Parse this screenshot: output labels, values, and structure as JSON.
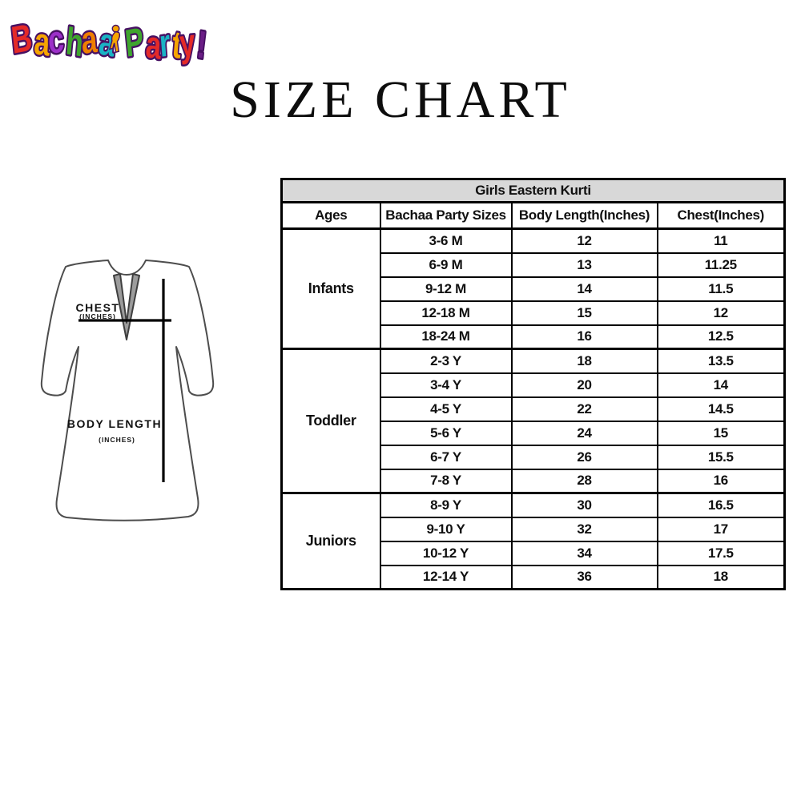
{
  "page": {
    "title": "SIZE CHART",
    "background": "#ffffff"
  },
  "logo": {
    "alt": "Bachaa Party!",
    "outline_color": "#471063",
    "kid_icon_color": "#f6a500",
    "words": [
      {
        "letters": [
          {
            "ch": "B",
            "color": "#e42a28"
          },
          {
            "ch": "a",
            "color": "#f6a500"
          },
          {
            "ch": "c",
            "color": "#9c2fc9"
          },
          {
            "ch": "h",
            "color": "#3fa52e"
          },
          {
            "ch": "a",
            "color": "#ef7f00"
          },
          {
            "ch": "a",
            "color": "#1ab3c5"
          }
        ]
      },
      {
        "letters": [
          {
            "ch": "P",
            "color": "#3fa52e"
          },
          {
            "ch": "a",
            "color": "#e42a28"
          },
          {
            "ch": "r",
            "color": "#1ab3c5"
          },
          {
            "ch": "t",
            "color": "#f6a500"
          },
          {
            "ch": "y",
            "color": "#e42a28"
          },
          {
            "ch": "!",
            "color": "#6b1d86"
          }
        ]
      }
    ]
  },
  "diagram": {
    "chest_label": "CHEST",
    "chest_unit": "(INCHES)",
    "body_length_label": "BODY LENGTH",
    "body_length_unit": "(INCHES)",
    "placket_color": "#9c9c9c",
    "outline_color": "#4d4d4d"
  },
  "table": {
    "title": "Girls Eastern Kurti",
    "title_bg": "#d8d8d8",
    "columns": [
      "Ages",
      "Bachaa Party Sizes",
      "Body Length(Inches)",
      "Chest(Inches)"
    ],
    "groups": [
      {
        "age_group": "Infants",
        "rows": [
          {
            "size": "3-6 M",
            "body_length": "12",
            "chest": "11"
          },
          {
            "size": "6-9 M",
            "body_length": "13",
            "chest": "11.25"
          },
          {
            "size": "9-12 M",
            "body_length": "14",
            "chest": "11.5"
          },
          {
            "size": "12-18 M",
            "body_length": "15",
            "chest": "12"
          },
          {
            "size": "18-24 M",
            "body_length": "16",
            "chest": "12.5"
          }
        ]
      },
      {
        "age_group": "Toddler",
        "rows": [
          {
            "size": "2-3 Y",
            "body_length": "18",
            "chest": "13.5"
          },
          {
            "size": "3-4 Y",
            "body_length": "20",
            "chest": "14"
          },
          {
            "size": "4-5 Y",
            "body_length": "22",
            "chest": "14.5"
          },
          {
            "size": "5-6 Y",
            "body_length": "24",
            "chest": "15"
          },
          {
            "size": "6-7 Y",
            "body_length": "26",
            "chest": "15.5"
          },
          {
            "size": "7-8 Y",
            "body_length": "28",
            "chest": "16"
          }
        ]
      },
      {
        "age_group": "Juniors",
        "rows": [
          {
            "size": "8-9 Y",
            "body_length": "30",
            "chest": "16.5"
          },
          {
            "size": "9-10 Y",
            "body_length": "32",
            "chest": "17"
          },
          {
            "size": "10-12 Y",
            "body_length": "34",
            "chest": "17.5"
          },
          {
            "size": "12-14 Y",
            "body_length": "36",
            "chest": "18"
          }
        ]
      }
    ]
  }
}
